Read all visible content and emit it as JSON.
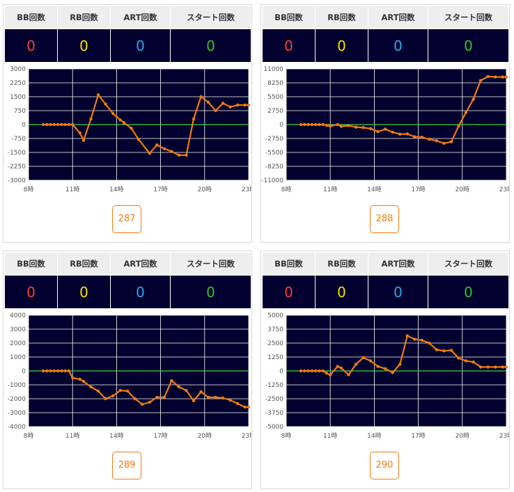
{
  "headers": {
    "bb": "BB回数",
    "rb": "RB回数",
    "art": "ART回数",
    "start": "スタート回数"
  },
  "xticks": [
    "8時",
    "11時",
    "14時",
    "17時",
    "20時",
    "23時"
  ],
  "colors": {
    "plot_bg": "#02002e",
    "line": "#f07c10",
    "zero_line": "#3fd23f",
    "bb": "#ff3b3b",
    "rb": "#ffe000",
    "art": "#2aa8f0",
    "start": "#2ec42e"
  },
  "machines": [
    {
      "number": "287",
      "bb": "0",
      "rb": "0",
      "art": "0",
      "start": "0",
      "chart_data": {
        "type": "line",
        "ylim": [
          -3000,
          3000
        ],
        "yticks": [
          "3000",
          "2250",
          "1500",
          "750",
          "0",
          "-750",
          "-1500",
          "-2250",
          "-3000"
        ],
        "x": [
          9.0,
          9.25,
          9.5,
          9.75,
          10.0,
          10.25,
          10.5,
          10.75,
          11.0,
          11.5,
          11.75,
          12.25,
          12.75,
          13.25,
          13.75,
          14.25,
          14.5,
          15.0,
          15.5,
          16.25,
          16.75,
          17.25,
          17.75,
          18.25,
          18.75,
          19.25,
          19.75,
          20.25,
          20.75,
          21.25,
          21.75,
          22.25,
          22.75,
          23.0
        ],
        "y": [
          0,
          0,
          0,
          0,
          0,
          0,
          0,
          0,
          0,
          -450,
          -850,
          300,
          1600,
          1100,
          600,
          250,
          100,
          -200,
          -800,
          -1550,
          -1100,
          -1300,
          -1450,
          -1650,
          -1650,
          300,
          1500,
          1200,
          750,
          1150,
          950,
          1050,
          1050,
          1050
        ]
      }
    },
    {
      "number": "288",
      "bb": "0",
      "rb": "0",
      "art": "0",
      "start": "0",
      "chart_data": {
        "type": "line",
        "ylim": [
          -11000,
          11000
        ],
        "yticks": [
          "11000",
          "8250",
          "5500",
          "2750",
          "0",
          "-2750",
          "-5500",
          "-8250",
          "-11000"
        ],
        "x": [
          9.0,
          9.25,
          9.5,
          9.75,
          10.0,
          10.25,
          10.5,
          10.75,
          11.0,
          11.5,
          11.75,
          12.25,
          12.75,
          13.25,
          13.75,
          14.25,
          14.75,
          15.25,
          15.75,
          16.25,
          16.75,
          17.25,
          17.75,
          18.25,
          18.75,
          19.25,
          19.75,
          20.25,
          20.75,
          21.25,
          21.75,
          22.25,
          22.75,
          23.0
        ],
        "y": [
          0,
          0,
          0,
          0,
          0,
          0,
          0,
          -150,
          -300,
          0,
          -350,
          -200,
          -500,
          -600,
          -800,
          -1400,
          -900,
          -1500,
          -1900,
          -1850,
          -2400,
          -2500,
          -2900,
          -3200,
          -3700,
          -3400,
          -300,
          2400,
          5000,
          8700,
          9500,
          9400,
          9400,
          9400
        ]
      }
    },
    {
      "number": "289",
      "bb": "0",
      "rb": "0",
      "art": "0",
      "start": "0",
      "chart_data": {
        "type": "line",
        "ylim": [
          -4000,
          4000
        ],
        "yticks": [
          "4000",
          "3000",
          "2000",
          "1000",
          "0",
          "-1000",
          "-2000",
          "-3000",
          "-4000"
        ],
        "x": [
          9.0,
          9.25,
          9.5,
          9.75,
          10.0,
          10.25,
          10.5,
          10.75,
          11.0,
          11.5,
          11.75,
          12.25,
          12.75,
          13.25,
          13.75,
          14.25,
          14.75,
          15.25,
          15.75,
          16.25,
          16.75,
          17.25,
          17.75,
          18.25,
          18.75,
          19.25,
          19.75,
          20.25,
          20.75,
          21.25,
          21.75,
          22.25,
          22.75,
          23.0
        ],
        "y": [
          0,
          0,
          0,
          0,
          0,
          0,
          0,
          0,
          -500,
          -600,
          -750,
          -1150,
          -1450,
          -2000,
          -1800,
          -1400,
          -1450,
          -2000,
          -2400,
          -2250,
          -1900,
          -1900,
          -700,
          -1150,
          -1400,
          -2150,
          -1500,
          -1900,
          -1900,
          -1950,
          -2100,
          -2350,
          -2600,
          -2600
        ]
      }
    },
    {
      "number": "290",
      "bb": "0",
      "rb": "0",
      "art": "0",
      "start": "0",
      "chart_data": {
        "type": "line",
        "ylim": [
          -5000,
          5000
        ],
        "yticks": [
          "5000",
          "3750",
          "2500",
          "1250",
          "0",
          "-1250",
          "-2500",
          "-3750",
          "-5000"
        ],
        "x": [
          9.0,
          9.25,
          9.5,
          9.75,
          10.0,
          10.25,
          10.5,
          10.75,
          11.0,
          11.5,
          11.75,
          12.25,
          12.75,
          13.25,
          13.75,
          14.25,
          14.75,
          15.25,
          15.75,
          16.25,
          16.75,
          17.25,
          17.75,
          18.25,
          18.75,
          19.25,
          19.75,
          20.25,
          20.75,
          21.25,
          21.75,
          22.25,
          22.75,
          23.0
        ],
        "y": [
          0,
          0,
          0,
          0,
          0,
          0,
          0,
          -200,
          -350,
          400,
          250,
          -350,
          600,
          1200,
          900,
          400,
          200,
          -150,
          600,
          3150,
          2850,
          2750,
          2500,
          1900,
          1800,
          1850,
          1150,
          900,
          800,
          350,
          350,
          350,
          350,
          350
        ]
      }
    }
  ]
}
